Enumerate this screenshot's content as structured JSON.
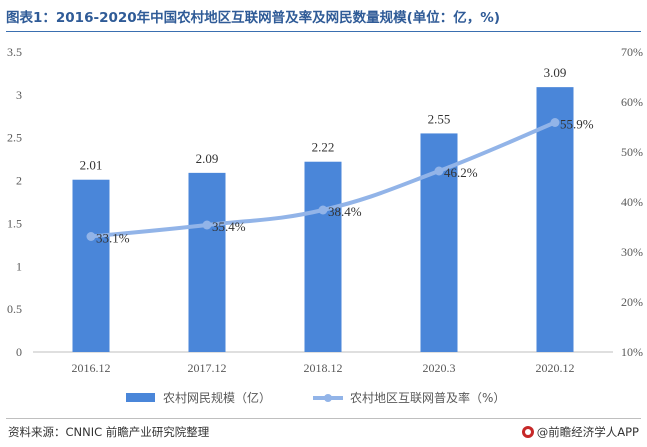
{
  "title": "图表1：2016-2020年中国农村地区互联网普及率及网民数量规模(单位：亿，%)",
  "footer": {
    "source": "资料来源：CNNIC 前瞻产业研究院整理",
    "brand": "@前瞻经济学人APP",
    "brand_icon": "qianzhan-logo-icon"
  },
  "chart_data": {
    "type": "bar",
    "categories": [
      "2016.12",
      "2017.12",
      "2018.12",
      "2020.3",
      "2020.12"
    ],
    "series": [
      {
        "name": "农村网民规模（亿）",
        "type": "bar",
        "axis": "left",
        "color": "#4a86d9",
        "values": [
          2.01,
          2.09,
          2.22,
          2.55,
          3.09
        ],
        "labels": [
          "2.01",
          "2.09",
          "2.22",
          "2.55",
          "3.09"
        ]
      },
      {
        "name": "农村地区互联网普及率（%）",
        "type": "line",
        "axis": "right",
        "color": "#92b4e8",
        "values": [
          33.1,
          35.4,
          38.4,
          46.2,
          55.9
        ],
        "labels": [
          "33.1%",
          "35.4%",
          "38.4%",
          "46.2%",
          "55.9%"
        ]
      }
    ],
    "y_left": {
      "lim": [
        0,
        3.5
      ],
      "ticks": [
        "0",
        "0.5",
        "1",
        "1.5",
        "2",
        "2.5",
        "3",
        "3.5"
      ]
    },
    "y_right": {
      "lim": [
        10,
        70
      ],
      "ticks": [
        "10%",
        "20%",
        "30%",
        "40%",
        "50%",
        "60%",
        "70%"
      ]
    },
    "grid": false,
    "legend_position": "bottom"
  }
}
